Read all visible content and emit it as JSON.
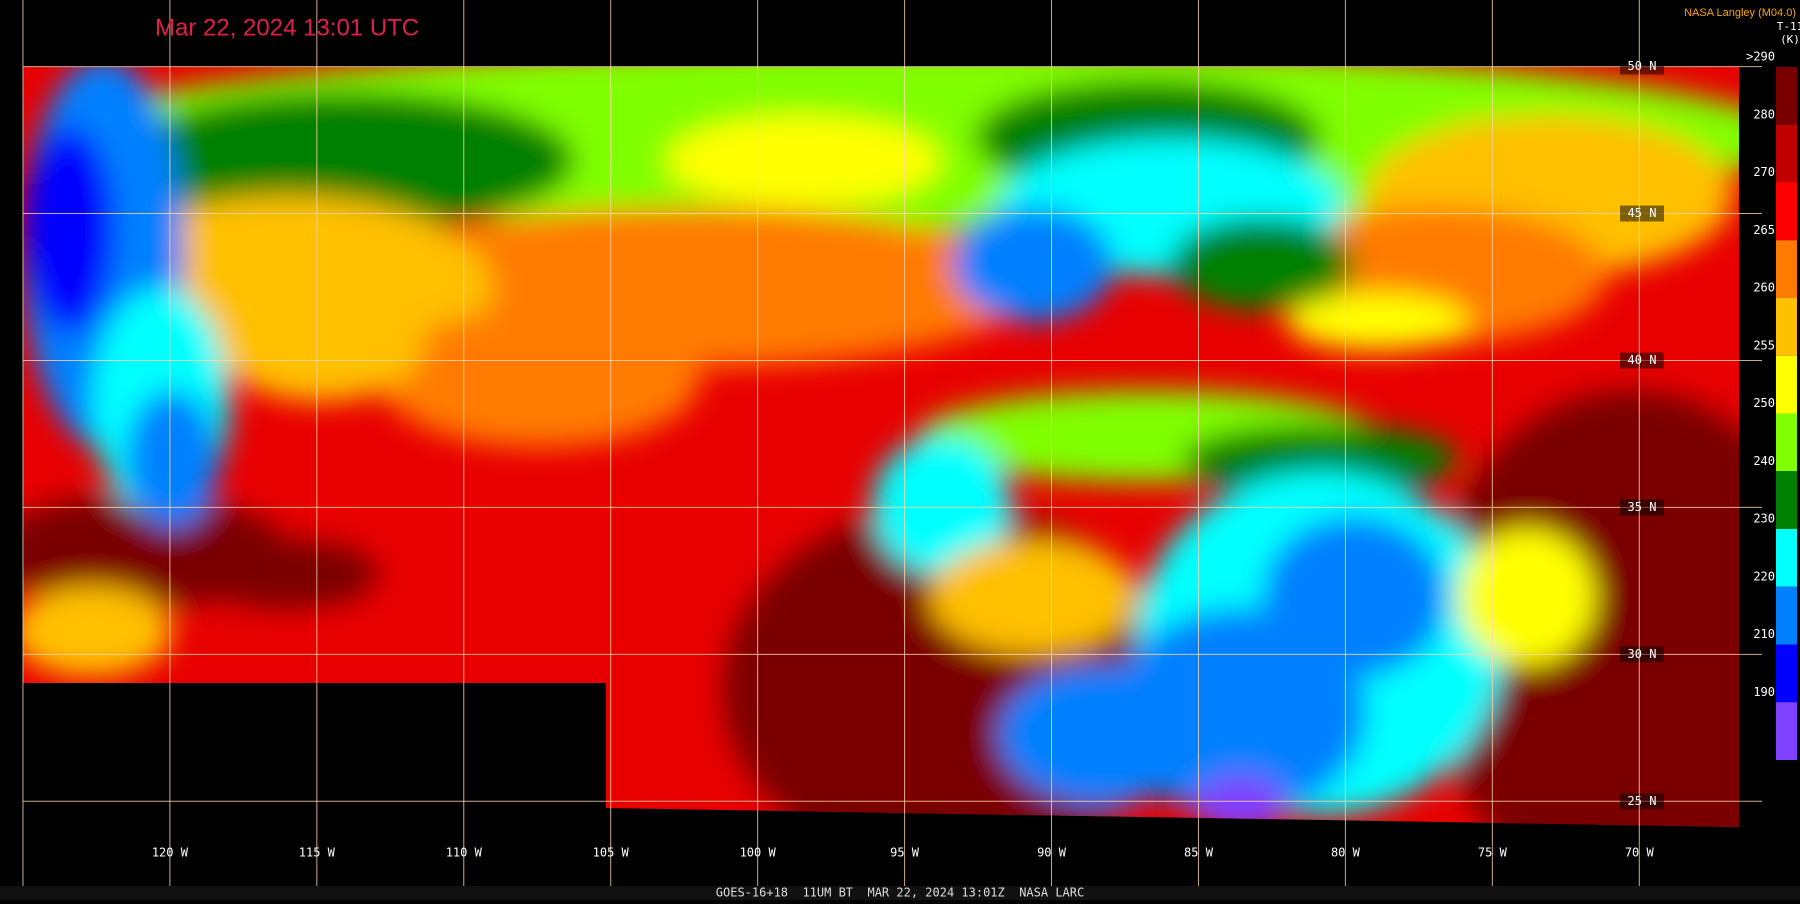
{
  "header": {
    "title": "Mar 22, 2024 13:01 UTC",
    "credit": "NASA Langley (M04.0)"
  },
  "legend": {
    "title": "T-11",
    "unit": "(K)",
    "steps": [
      {
        "label": ">290",
        "color": "#7a0000"
      },
      {
        "label": "280",
        "color": "#c00000"
      },
      {
        "label": "270",
        "color": "#ff0000"
      },
      {
        "label": "265",
        "color": "#ff7a00"
      },
      {
        "label": "260",
        "color": "#ffc000"
      },
      {
        "label": "255",
        "color": "#ffff00"
      },
      {
        "label": "250",
        "color": "#80ff00"
      },
      {
        "label": "240",
        "color": "#008000"
      },
      {
        "label": "230",
        "color": "#00ffff"
      },
      {
        "label": "220",
        "color": "#0080ff"
      },
      {
        "label": "210",
        "color": "#0000ff"
      },
      {
        "label": "190",
        "color": "#8040ff"
      }
    ]
  },
  "map": {
    "latitude_labels": [
      "50 N",
      "45 N",
      "40 N",
      "35 N",
      "30 N",
      "25 N"
    ],
    "longitude_labels": [
      "120 W",
      "115 W",
      "110 W",
      "105 W",
      "100 W",
      "95 W",
      "90 W",
      "85 W",
      "80 W",
      "75 W",
      "70 W"
    ]
  },
  "footer": {
    "text": "GOES-16+18  11UM BT  MAR 22, 2024 13:01Z  NASA LARC"
  }
}
